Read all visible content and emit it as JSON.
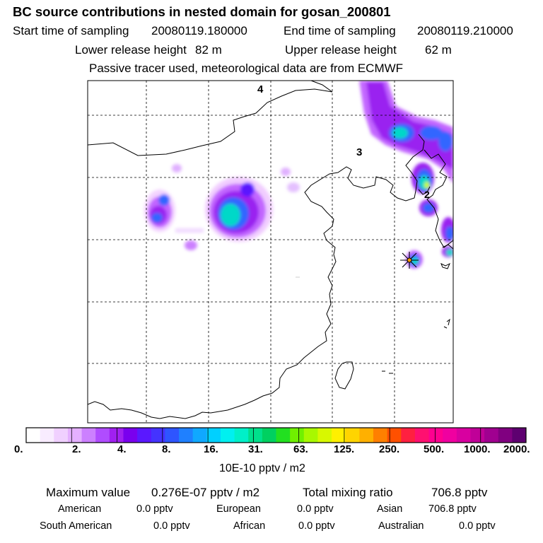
{
  "header": {
    "title": "BC  source contributions in nested domain for gosan_200801",
    "start_label": "Start time of sampling",
    "start_value": "20080119.180000",
    "end_label": "End time of sampling",
    "end_value": "20080119.210000",
    "lower_label": "Lower release height",
    "lower_value": "82 m",
    "upper_label": "Upper release height",
    "upper_value": "62 m",
    "tracer_note": "Passive tracer used, meteorological data are from ECMWF"
  },
  "map": {
    "time_markers": [
      "4",
      "3",
      "2"
    ],
    "receptor_icon": "star-marker-icon",
    "plume_colors": {
      "light": "#f0c8ff",
      "violet": "#c266ff",
      "purple": "#9a20f0",
      "blue": "#3366ff",
      "cyan": "#00e0d0",
      "green": "#44dd66",
      "yellow": "#ccff00"
    }
  },
  "legend": {
    "ticks": [
      "0.",
      "2.",
      "4.",
      "8.",
      "16.",
      "31.",
      "63.",
      "125.",
      "250.",
      "500.",
      "1000.",
      "2000."
    ],
    "colors": [
      "#ffffff",
      "#f8ecff",
      "#f0d0ff",
      "#e4b0ff",
      "#cc80ff",
      "#b04cff",
      "#a020f0",
      "#7a00ee",
      "#5a18ff",
      "#4433ff",
      "#2e55ff",
      "#1f80ff",
      "#10a8ff",
      "#00d0ff",
      "#00f0f0",
      "#00f0c8",
      "#00e08c",
      "#00d060",
      "#22e020",
      "#70f000",
      "#a8f800",
      "#d8f800",
      "#fff000",
      "#ffd400",
      "#ffb000",
      "#ff8000",
      "#ff5000",
      "#ff2040",
      "#ff1070",
      "#ff0090",
      "#f000a0",
      "#d800a0",
      "#c00098",
      "#a00090",
      "#800080",
      "#5e0070"
    ],
    "unit": "10E-10 pptv / m2"
  },
  "stats": {
    "max_label": "Maximum value",
    "max_value": "0.276E-07 pptv / m2",
    "total_label": "Total mixing ratio",
    "total_value": "706.8 pptv"
  },
  "regions": [
    {
      "name": "American",
      "value": "0.0 pptv"
    },
    {
      "name": "European",
      "value": "0.0 pptv"
    },
    {
      "name": "Asian",
      "value": "706.8 pptv"
    },
    {
      "name": "South American",
      "value": "0.0 pptv"
    },
    {
      "name": "African",
      "value": "0.0 pptv"
    },
    {
      "name": "Australian",
      "value": "0.0 pptv"
    }
  ]
}
